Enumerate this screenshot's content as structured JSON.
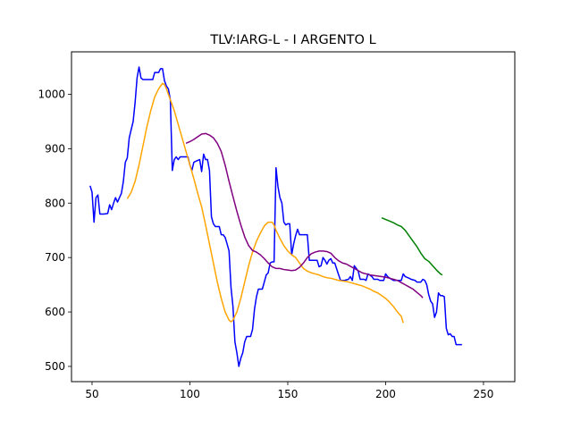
{
  "chart_data": {
    "type": "line",
    "title": "TLV:IARG-L - I ARGENTO L",
    "xlabel": "",
    "ylabel": "",
    "xlim": [
      39.5,
      266
    ],
    "ylim": [
      472,
      1078
    ],
    "x_ticks": [
      50,
      100,
      150,
      200,
      250
    ],
    "y_ticks": [
      500,
      600,
      700,
      800,
      900,
      1000
    ],
    "grid": false,
    "legend": "none",
    "series": [
      {
        "color": "#0000ff",
        "points": [
          [
            49,
            832
          ],
          [
            50,
            820
          ],
          [
            51,
            765
          ],
          [
            52,
            810
          ],
          [
            53,
            815
          ],
          [
            54,
            780
          ],
          [
            56,
            780
          ],
          [
            58,
            781
          ],
          [
            59,
            797
          ],
          [
            60,
            788
          ],
          [
            61,
            800
          ],
          [
            62,
            810
          ],
          [
            63,
            802
          ],
          [
            64,
            810
          ],
          [
            65,
            818
          ],
          [
            66,
            840
          ],
          [
            67,
            875
          ],
          [
            68,
            883
          ],
          [
            69,
            920
          ],
          [
            70,
            935
          ],
          [
            71,
            950
          ],
          [
            72,
            985
          ],
          [
            73,
            1030
          ],
          [
            74,
            1050
          ],
          [
            75,
            1030
          ],
          [
            76,
            1027
          ],
          [
            78,
            1027
          ],
          [
            80,
            1027
          ],
          [
            81,
            1027
          ],
          [
            82,
            1040
          ],
          [
            84,
            1040
          ],
          [
            85,
            1047
          ],
          [
            86,
            1047
          ],
          [
            87,
            1025
          ],
          [
            88,
            1015
          ],
          [
            89,
            1010
          ],
          [
            90,
            990
          ],
          [
            91,
            860
          ],
          [
            92,
            880
          ],
          [
            93,
            885
          ],
          [
            94,
            880
          ],
          [
            95,
            885
          ],
          [
            97,
            885
          ],
          [
            99,
            885
          ],
          [
            100,
            870
          ],
          [
            101,
            860
          ],
          [
            102,
            875
          ],
          [
            103,
            877
          ],
          [
            105,
            880
          ],
          [
            106,
            858
          ],
          [
            107,
            890
          ],
          [
            108,
            880
          ],
          [
            109,
            880
          ],
          [
            110,
            860
          ],
          [
            111,
            775
          ],
          [
            112,
            762
          ],
          [
            113,
            757
          ],
          [
            114,
            757
          ],
          [
            115,
            757
          ],
          [
            116,
            742
          ],
          [
            117,
            742
          ],
          [
            118,
            737
          ],
          [
            119,
            725
          ],
          [
            120,
            712
          ],
          [
            121,
            645
          ],
          [
            122,
            610
          ],
          [
            123,
            545
          ],
          [
            124,
            525
          ],
          [
            125,
            500
          ],
          [
            126,
            515
          ],
          [
            127,
            525
          ],
          [
            128,
            545
          ],
          [
            129,
            555
          ],
          [
            130,
            555
          ],
          [
            131,
            555
          ],
          [
            132,
            568
          ],
          [
            133,
            605
          ],
          [
            134,
            628
          ],
          [
            135,
            642
          ],
          [
            137,
            642
          ],
          [
            138,
            655
          ],
          [
            139,
            668
          ],
          [
            140,
            672
          ],
          [
            141,
            690
          ],
          [
            142,
            692
          ],
          [
            143,
            692
          ],
          [
            144,
            865
          ],
          [
            145,
            830
          ],
          [
            146,
            810
          ],
          [
            147,
            800
          ],
          [
            148,
            765
          ],
          [
            149,
            760
          ],
          [
            150,
            762
          ],
          [
            151,
            762
          ],
          [
            152,
            705
          ],
          [
            153,
            725
          ],
          [
            154,
            740
          ],
          [
            155,
            752
          ],
          [
            156,
            742
          ],
          [
            157,
            742
          ],
          [
            158,
            742
          ],
          [
            159,
            742
          ],
          [
            160,
            742
          ],
          [
            161,
            695
          ],
          [
            163,
            695
          ],
          [
            165,
            695
          ],
          [
            166,
            683
          ],
          [
            167,
            685
          ],
          [
            168,
            700
          ],
          [
            169,
            695
          ],
          [
            170,
            688
          ],
          [
            171,
            695
          ],
          [
            172,
            698
          ],
          [
            173,
            690
          ],
          [
            174,
            690
          ],
          [
            176,
            668
          ],
          [
            177,
            658
          ],
          [
            179,
            658
          ],
          [
            181,
            660
          ],
          [
            182,
            665
          ],
          [
            183,
            658
          ],
          [
            184,
            685
          ],
          [
            185,
            680
          ],
          [
            186,
            675
          ],
          [
            187,
            660
          ],
          [
            189,
            660
          ],
          [
            190,
            658
          ],
          [
            191,
            670
          ],
          [
            193,
            665
          ],
          [
            194,
            660
          ],
          [
            196,
            660
          ],
          [
            197,
            658
          ],
          [
            199,
            658
          ],
          [
            200,
            670
          ],
          [
            201,
            665
          ],
          [
            203,
            660
          ],
          [
            204,
            658
          ],
          [
            206,
            658
          ],
          [
            208,
            658
          ],
          [
            209,
            670
          ],
          [
            210,
            665
          ],
          [
            212,
            662
          ],
          [
            213,
            660
          ],
          [
            215,
            658
          ],
          [
            216,
            655
          ],
          [
            218,
            655
          ],
          [
            219,
            660
          ],
          [
            220,
            658
          ],
          [
            221,
            650
          ],
          [
            222,
            632
          ],
          [
            223,
            620
          ],
          [
            224,
            615
          ],
          [
            225,
            590
          ],
          [
            226,
            600
          ],
          [
            227,
            635
          ],
          [
            228,
            630
          ],
          [
            229,
            630
          ],
          [
            230,
            628
          ],
          [
            231,
            570
          ],
          [
            232,
            558
          ],
          [
            233,
            560
          ],
          [
            234,
            555
          ],
          [
            235,
            555
          ],
          [
            236,
            540
          ],
          [
            237,
            540
          ],
          [
            238,
            540
          ],
          [
            239,
            540
          ]
        ]
      },
      {
        "color": "#ffa500",
        "points": [
          [
            68,
            808
          ],
          [
            70,
            820
          ],
          [
            72,
            840
          ],
          [
            74,
            870
          ],
          [
            76,
            905
          ],
          [
            78,
            940
          ],
          [
            80,
            970
          ],
          [
            82,
            995
          ],
          [
            84,
            1010
          ],
          [
            86,
            1020
          ],
          [
            87,
            1018
          ],
          [
            88,
            1010
          ],
          [
            89,
            1000
          ],
          [
            90,
            990
          ],
          [
            92,
            970
          ],
          [
            94,
            945
          ],
          [
            96,
            920
          ],
          [
            98,
            895
          ],
          [
            100,
            870
          ],
          [
            102,
            845
          ],
          [
            104,
            818
          ],
          [
            106,
            793
          ],
          [
            108,
            760
          ],
          [
            110,
            725
          ],
          [
            112,
            690
          ],
          [
            114,
            655
          ],
          [
            116,
            625
          ],
          [
            118,
            600
          ],
          [
            120,
            585
          ],
          [
            121,
            582
          ],
          [
            122,
            585
          ],
          [
            124,
            600
          ],
          [
            126,
            625
          ],
          [
            128,
            655
          ],
          [
            130,
            685
          ],
          [
            132,
            710
          ],
          [
            134,
            730
          ],
          [
            136,
            745
          ],
          [
            138,
            758
          ],
          [
            140,
            765
          ],
          [
            142,
            765
          ],
          [
            143,
            760
          ],
          [
            144,
            750
          ],
          [
            146,
            735
          ],
          [
            148,
            722
          ],
          [
            150,
            712
          ],
          [
            152,
            705
          ],
          [
            154,
            700
          ],
          [
            156,
            690
          ],
          [
            158,
            680
          ],
          [
            160,
            675
          ],
          [
            162,
            672
          ],
          [
            164,
            670
          ],
          [
            166,
            668
          ],
          [
            168,
            665
          ],
          [
            170,
            663
          ],
          [
            172,
            662
          ],
          [
            174,
            660
          ],
          [
            176,
            658
          ],
          [
            178,
            657
          ],
          [
            180,
            656
          ],
          [
            182,
            654
          ],
          [
            184,
            652
          ],
          [
            186,
            650
          ],
          [
            188,
            648
          ],
          [
            190,
            645
          ],
          [
            192,
            642
          ],
          [
            194,
            638
          ],
          [
            196,
            635
          ],
          [
            198,
            630
          ],
          [
            200,
            625
          ],
          [
            202,
            618
          ],
          [
            204,
            610
          ],
          [
            206,
            600
          ],
          [
            208,
            592
          ],
          [
            209,
            580
          ]
        ]
      },
      {
        "color": "#800080",
        "points": [
          [
            98,
            910
          ],
          [
            100,
            913
          ],
          [
            102,
            917
          ],
          [
            104,
            922
          ],
          [
            106,
            927
          ],
          [
            108,
            928
          ],
          [
            110,
            925
          ],
          [
            112,
            920
          ],
          [
            114,
            910
          ],
          [
            116,
            895
          ],
          [
            118,
            870
          ],
          [
            120,
            840
          ],
          [
            122,
            812
          ],
          [
            124,
            785
          ],
          [
            126,
            760
          ],
          [
            128,
            738
          ],
          [
            130,
            722
          ],
          [
            132,
            713
          ],
          [
            134,
            710
          ],
          [
            136,
            705
          ],
          [
            138,
            698
          ],
          [
            140,
            690
          ],
          [
            142,
            683
          ],
          [
            144,
            680
          ],
          [
            146,
            680
          ],
          [
            148,
            678
          ],
          [
            150,
            677
          ],
          [
            152,
            676
          ],
          [
            154,
            677
          ],
          [
            156,
            682
          ],
          [
            158,
            690
          ],
          [
            160,
            700
          ],
          [
            162,
            707
          ],
          [
            164,
            710
          ],
          [
            166,
            712
          ],
          [
            168,
            712
          ],
          [
            170,
            711
          ],
          [
            172,
            708
          ],
          [
            174,
            700
          ],
          [
            176,
            694
          ],
          [
            178,
            690
          ],
          [
            180,
            688
          ],
          [
            182,
            684
          ],
          [
            184,
            680
          ],
          [
            186,
            676
          ],
          [
            188,
            672
          ],
          [
            190,
            670
          ],
          [
            192,
            668
          ],
          [
            194,
            667
          ],
          [
            196,
            666
          ],
          [
            198,
            665
          ],
          [
            200,
            664
          ],
          [
            202,
            662
          ],
          [
            204,
            660
          ],
          [
            206,
            658
          ],
          [
            208,
            654
          ],
          [
            210,
            650
          ],
          [
            212,
            646
          ],
          [
            214,
            642
          ],
          [
            216,
            636
          ],
          [
            218,
            630
          ],
          [
            219,
            626
          ]
        ]
      },
      {
        "color": "#008000",
        "points": [
          [
            198,
            773
          ],
          [
            200,
            770
          ],
          [
            202,
            767
          ],
          [
            204,
            764
          ],
          [
            206,
            760
          ],
          [
            208,
            757
          ],
          [
            210,
            750
          ],
          [
            212,
            740
          ],
          [
            214,
            730
          ],
          [
            216,
            720
          ],
          [
            218,
            708
          ],
          [
            220,
            698
          ],
          [
            222,
            693
          ],
          [
            224,
            685
          ],
          [
            226,
            677
          ],
          [
            228,
            670
          ],
          [
            229,
            668
          ]
        ]
      }
    ]
  }
}
